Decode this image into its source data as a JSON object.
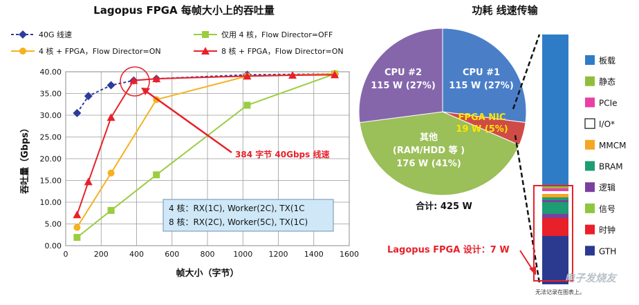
{
  "chart_data": [
    {
      "type": "line",
      "title": "Lagopus FPGA 每帧大小上的吞吐量",
      "xlabel": "帧大小（字节）",
      "ylabel": "吞吐量（Gbps）",
      "xlim": [
        0,
        1600
      ],
      "ylim": [
        0,
        40
      ],
      "xticks": [
        "0",
        "200",
        "400",
        "600",
        "800",
        "1000",
        "1200",
        "1400",
        "1600"
      ],
      "yticks": [
        "0.00",
        "5.00",
        "10.00",
        "15.00",
        "20.00",
        "25.00",
        "30.00",
        "35.00",
        "40.00"
      ],
      "grid": true,
      "legend_position": "top",
      "series": [
        {
          "name": "40G 线速",
          "color": "#2e3b9a",
          "marker": "diamond",
          "dashed": true,
          "x": [
            64,
            128,
            256,
            384,
            512,
            1024,
            1518
          ],
          "y": [
            30.5,
            34.4,
            36.9,
            38.0,
            38.4,
            39.3,
            39.5
          ]
        },
        {
          "name": "仅用 4 核，Flow Director=OFF",
          "color": "#9acd40",
          "marker": "square",
          "dashed": false,
          "x": [
            64,
            256,
            512,
            1024,
            1518
          ],
          "y": [
            1.9,
            8.1,
            16.3,
            32.3,
            39.5
          ]
        },
        {
          "name": "4 核 + FPGA，Flow Director=ON",
          "color": "#f5b21f",
          "marker": "circle",
          "dashed": false,
          "x": [
            64,
            256,
            512,
            1024,
            1518
          ],
          "y": [
            4.2,
            16.7,
            33.6,
            39.0,
            39.5
          ]
        },
        {
          "name": "8 核 + FPGA，Flow Director=ON",
          "color": "#e8202a",
          "marker": "triangle",
          "dashed": false,
          "x": [
            64,
            128,
            256,
            384,
            512,
            1024,
            1280,
            1518
          ],
          "y": [
            7.1,
            14.7,
            29.5,
            38.0,
            38.4,
            39.0,
            39.2,
            39.3
          ]
        }
      ],
      "annotations": {
        "callout": "384 字节 40Gbps 线速",
        "config_line_1": "4 核：RX(1C), Worker(2C), TX(1C",
        "config_line_2": "8 核：RX(2C), Worker(5C), TX(1C)"
      }
    },
    {
      "type": "pie",
      "title": "功耗 线速传输",
      "slices": [
        {
          "label": "CPU #1",
          "value_text": "115 W (27%)",
          "watts": 115,
          "percent": 27,
          "color": "#4a7fc8"
        },
        {
          "label": "FPGA NIC",
          "value_text": "19 W (5%)",
          "watts": 19,
          "percent": 5,
          "color": "#cf4b47"
        },
        {
          "label": "其他",
          "sublabel": "(RAM/HDD 等 )",
          "value_text": "176 W (41%)",
          "watts": 176,
          "percent": 41,
          "color": "#9bbf59"
        },
        {
          "label": "CPU #2",
          "value_text": "115 W (27%)",
          "watts": 115,
          "percent": 27,
          "color": "#8566ab"
        }
      ],
      "total": "合计: 425 W"
    },
    {
      "type": "bar",
      "title": "",
      "stacked": true,
      "legend": [
        {
          "label": "板载",
          "color": "#2f7cc6"
        },
        {
          "label": "静态",
          "color": "#8fbe3c"
        },
        {
          "label": "PCIe",
          "color": "#ea3fa4"
        },
        {
          "label": "I/O*",
          "color": "#ffffff"
        },
        {
          "label": "MMCM",
          "color": "#f5a623"
        },
        {
          "label": "BRAM",
          "color": "#1e9c73"
        },
        {
          "label": "逻辑",
          "color": "#7b3f9e"
        },
        {
          "label": "信号",
          "color": "#8dc63f"
        },
        {
          "label": "时钟",
          "color": "#e8202a"
        },
        {
          "label": "GTH",
          "color": "#2b3a8f"
        }
      ],
      "fpga_design_label": "Lagopus FPGA 设计：7 W"
    }
  ],
  "watermark": {
    "brand": "电子发烧友",
    "small": "无法记录在图表上。"
  }
}
